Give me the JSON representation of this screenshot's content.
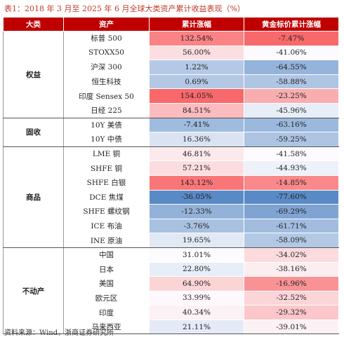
{
  "caption": "表1：2018 年 3 月至 2025 年 6 月全球大类资产累计收益表现（%）",
  "headers": {
    "category": "大类",
    "asset": "资产",
    "cum_change": "累计涨幅",
    "gold_cum_change": "黄金标价累计涨幅"
  },
  "groups": [
    {
      "category": "权益",
      "rows": [
        {
          "asset": "标普 500",
          "cum": "132.54%",
          "cum_v": 132.54,
          "gold": "-7.47%",
          "gold_v": -7.47
        },
        {
          "asset": "STOXX50",
          "cum": "56.00%",
          "cum_v": 56.0,
          "gold": "-41.06%",
          "gold_v": -41.06
        },
        {
          "asset": "沪深 300",
          "cum": "1.22%",
          "cum_v": 1.22,
          "gold": "-64.55%",
          "gold_v": -64.55
        },
        {
          "asset": "恒生科技",
          "cum": "0.69%",
          "cum_v": 0.69,
          "gold": "-58.88%",
          "gold_v": -58.88
        },
        {
          "asset": "印度 Sensex 50",
          "cum": "154.05%",
          "cum_v": 154.05,
          "gold": "-23.25%",
          "gold_v": -23.25
        },
        {
          "asset": "日经 225",
          "cum": "84.51%",
          "cum_v": 84.51,
          "gold": "-45.96%",
          "gold_v": -45.96
        }
      ]
    },
    {
      "category": "固收",
      "rows": [
        {
          "asset": "10Y 美债",
          "cum": "-7.41%",
          "cum_v": -7.41,
          "gold": "-63.16%",
          "gold_v": -63.16
        },
        {
          "asset": "10Y 中债",
          "cum": "16.36%",
          "cum_v": 16.36,
          "gold": "-59.25%",
          "gold_v": -59.25
        }
      ]
    },
    {
      "category": "商品",
      "rows": [
        {
          "asset": "LME 铜",
          "cum": "46.81%",
          "cum_v": 46.81,
          "gold": "-41.58%",
          "gold_v": -41.58
        },
        {
          "asset": "SHFE 铜",
          "cum": "57.21%",
          "cum_v": 57.21,
          "gold": "-44.93%",
          "gold_v": -44.93
        },
        {
          "asset": "SHFE 白银",
          "cum": "143.12%",
          "cum_v": 143.12,
          "gold": "-14.85%",
          "gold_v": -14.85
        },
        {
          "asset": "DCE 焦煤",
          "cum": "-36.05%",
          "cum_v": -36.05,
          "gold": "-77.60%",
          "gold_v": -77.6
        },
        {
          "asset": "SHFE 螺纹钢",
          "cum": "-12.33%",
          "cum_v": -12.33,
          "gold": "-69.29%",
          "gold_v": -69.29
        },
        {
          "asset": "ICE 布油",
          "cum": "-3.76%",
          "cum_v": -3.76,
          "gold": "-61.71%",
          "gold_v": -61.71
        },
        {
          "asset": "INE 原油",
          "cum": "19.65%",
          "cum_v": 19.65,
          "gold": "-58.09%",
          "gold_v": -58.09
        }
      ]
    },
    {
      "category": "不动产",
      "rows": [
        {
          "asset": "中国",
          "cum": "31.01%",
          "cum_v": 31.01,
          "gold": "-34.02%",
          "gold_v": -34.02
        },
        {
          "asset": "日本",
          "cum": "22.80%",
          "cum_v": 22.8,
          "gold": "-38.16%",
          "gold_v": -38.16
        },
        {
          "asset": "美国",
          "cum": "64.90%",
          "cum_v": 64.9,
          "gold": "-16.96%",
          "gold_v": -16.96
        },
        {
          "asset": "欧元区",
          "cum": "33.99%",
          "cum_v": 33.99,
          "gold": "-32.52%",
          "gold_v": -32.52
        },
        {
          "asset": "印度",
          "cum": "40.34%",
          "cum_v": 40.34,
          "gold": "-29.32%",
          "gold_v": -29.32
        },
        {
          "asset": "马来西亚",
          "cum": "21.11%",
          "cum_v": 21.11,
          "gold": "-39.01%",
          "gold_v": -39.01
        }
      ]
    }
  ],
  "source": "资料来源：Wind，浙商证券研究所",
  "colors": {
    "header_bg": "#c00000",
    "high": "#f8696b",
    "mid": "#fcfcff",
    "low": "#5a8ac6"
  }
}
